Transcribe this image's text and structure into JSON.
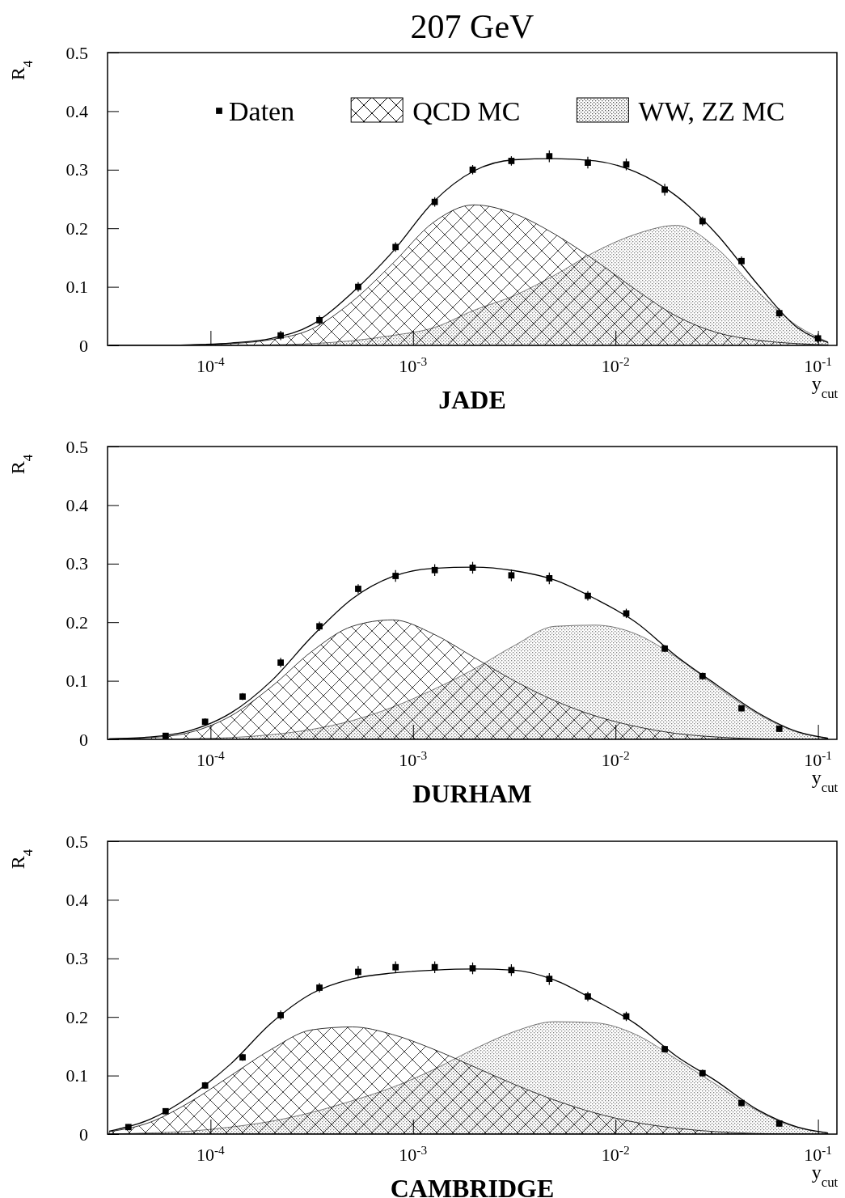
{
  "chart_data": [
    {
      "type": "scatter",
      "title": "207 GeV",
      "subtitle": "JADE",
      "xlabel": "y$_{cut}$",
      "ylabel": "R$_{4}$",
      "log": "x",
      "legend": "top",
      "xlim": [
        3.1e-05,
        0.124
      ],
      "xticks": [
        {
          "value": 0.0001,
          "label": "10$^{-4}$"
        },
        {
          "value": 0.001,
          "label": "10$^{-3}$"
        },
        {
          "value": 0.01,
          "label": "10$^{-2}$"
        },
        {
          "value": 0.1,
          "label": "10$^{-1}$"
        }
      ],
      "ylim": [
        0,
        0.5
      ],
      "yticks": [
        0,
        0.1,
        0.2,
        0.3,
        0.4,
        0.5
      ],
      "series": [
        {
          "name": "Daten",
          "type": "scatter",
          "marker": "square",
          "color": "#000000",
          "x": [
            0.000222,
            0.000345,
            0.000536,
            0.00082,
            0.00128,
            0.00197,
            0.00306,
            0.00471,
            0.0073,
            0.0113,
            0.0175,
            0.0269,
            0.0419,
            0.0644,
            0.1
          ],
          "values": [
            0.017,
            0.043,
            0.1,
            0.168,
            0.245,
            0.3,
            0.315,
            0.323,
            0.312,
            0.309,
            0.266,
            0.212,
            0.144,
            0.055,
            0.012
          ],
          "errors": [
            0.008,
            0.008,
            0.008,
            0.008,
            0.008,
            0.008,
            0.008,
            0.01,
            0.01,
            0.01,
            0.01,
            0.008,
            0.008,
            0.008,
            0.008
          ]
        },
        {
          "name": "QCD MC",
          "type": "area",
          "color": "#000000",
          "x": [
            3.16e-05,
            5.01e-05,
            7.94e-05,
            0.000126,
            0.0002,
            0.000316,
            0.000501,
            0.000794,
            0.00126,
            0.002,
            0.00316,
            0.00501,
            0.00794,
            0.0126,
            0.02,
            0.0316,
            0.0501,
            0.0794,
            0.112
          ],
          "values": [
            0,
            0,
            0.001,
            0.003,
            0.01,
            0.028,
            0.075,
            0.14,
            0.21,
            0.24,
            0.225,
            0.19,
            0.145,
            0.095,
            0.05,
            0.022,
            0.009,
            0.003,
            0.001
          ]
        },
        {
          "name": "WW, ZZ MC",
          "type": "area",
          "color": "#555555",
          "x": [
            3.16e-05,
            5.01e-05,
            7.94e-05,
            0.000126,
            0.0002,
            0.000316,
            0.000501,
            0.000794,
            0.00126,
            0.002,
            0.00316,
            0.00501,
            0.00794,
            0.0126,
            0.02,
            0.0316,
            0.0501,
            0.0794,
            0.112
          ],
          "values": [
            0,
            0,
            0,
            0,
            0.001,
            0.003,
            0.008,
            0.017,
            0.03,
            0.06,
            0.085,
            0.12,
            0.16,
            0.19,
            0.205,
            0.166,
            0.093,
            0.033,
            0.006
          ]
        },
        {
          "type": "line",
          "color": "#000000",
          "x": [
            3.16e-05,
            5.01e-05,
            7.94e-05,
            0.000126,
            0.0002,
            0.000316,
            0.000501,
            0.000794,
            0.00126,
            0.002,
            0.00316,
            0.00501,
            0.00794,
            0.0126,
            0.02,
            0.0316,
            0.0501,
            0.0794,
            0.112
          ],
          "values": [
            0,
            0,
            0.001,
            0.004,
            0.012,
            0.035,
            0.09,
            0.16,
            0.245,
            0.298,
            0.317,
            0.319,
            0.315,
            0.296,
            0.255,
            0.19,
            0.105,
            0.03,
            0.005
          ]
        }
      ]
    },
    {
      "type": "scatter",
      "subtitle": "DURHAM",
      "xlabel": "y$_{cut}$",
      "ylabel": "R$_{4}$",
      "log": "x",
      "xlim": [
        3.1e-05,
        0.124
      ],
      "xticks": [
        {
          "value": 0.0001,
          "label": "10$^{-4}$"
        },
        {
          "value": 0.001,
          "label": "10$^{-3}$"
        },
        {
          "value": 0.01,
          "label": "10$^{-2}$"
        },
        {
          "value": 0.1,
          "label": "10$^{-1}$"
        }
      ],
      "ylim": [
        0,
        0.5
      ],
      "yticks": [
        0,
        0.1,
        0.2,
        0.3,
        0.4,
        0.5
      ],
      "series": [
        {
          "type": "scatter",
          "marker": "square",
          "color": "#000000",
          "x": [
            6e-05,
            9.4e-05,
            0.000144,
            0.000222,
            0.000345,
            0.000536,
            0.00082,
            0.00128,
            0.00197,
            0.00306,
            0.00471,
            0.0073,
            0.0113,
            0.0175,
            0.0269,
            0.0419,
            0.0644
          ],
          "values": [
            0.006,
            0.03,
            0.073,
            0.131,
            0.193,
            0.257,
            0.279,
            0.289,
            0.293,
            0.28,
            0.275,
            0.245,
            0.215,
            0.155,
            0.108,
            0.053,
            0.018
          ],
          "errors": [
            0.005,
            0.006,
            0.006,
            0.008,
            0.008,
            0.008,
            0.01,
            0.01,
            0.01,
            0.01,
            0.01,
            0.008,
            0.008,
            0.006,
            0.006,
            0.005,
            0.005
          ]
        },
        {
          "type": "area",
          "color": "#000000",
          "x": [
            3.16e-05,
            5.01e-05,
            7.94e-05,
            0.000126,
            0.0002,
            0.000316,
            0.000501,
            0.000794,
            0.00126,
            0.002,
            0.00316,
            0.00501,
            0.00794,
            0.0126,
            0.02,
            0.0316,
            0.0501,
            0.0794,
            0.112
          ],
          "values": [
            0.001,
            0.003,
            0.012,
            0.04,
            0.09,
            0.15,
            0.193,
            0.204,
            0.18,
            0.14,
            0.1,
            0.066,
            0.04,
            0.022,
            0.01,
            0.004,
            0.001,
            0,
            0
          ]
        },
        {
          "type": "area",
          "color": "#555555",
          "x": [
            3.16e-05,
            5.01e-05,
            7.94e-05,
            0.000126,
            0.0002,
            0.000316,
            0.000501,
            0.000794,
            0.00126,
            0.002,
            0.00316,
            0.00501,
            0.00794,
            0.0126,
            0.02,
            0.0316,
            0.0501,
            0.0794,
            0.112
          ],
          "values": [
            0,
            0,
            0.001,
            0.003,
            0.008,
            0.017,
            0.032,
            0.055,
            0.085,
            0.12,
            0.16,
            0.193,
            0.195,
            0.18,
            0.14,
            0.09,
            0.044,
            0.012,
            0.002
          ]
        },
        {
          "type": "line",
          "color": "#000000",
          "x": [
            3.16e-05,
            5.01e-05,
            7.94e-05,
            0.000126,
            0.0002,
            0.000316,
            0.000501,
            0.000794,
            0.00126,
            0.002,
            0.00316,
            0.00501,
            0.00794,
            0.0126,
            0.02,
            0.0316,
            0.0501,
            0.0794,
            0.112
          ],
          "values": [
            0.001,
            0.004,
            0.015,
            0.045,
            0.1,
            0.175,
            0.24,
            0.278,
            0.292,
            0.294,
            0.288,
            0.272,
            0.24,
            0.2,
            0.142,
            0.093,
            0.046,
            0.013,
            0.002
          ]
        }
      ]
    },
    {
      "type": "scatter",
      "subtitle": "CAMBRIDGE",
      "xlabel": "y$_{cut}$",
      "ylabel": "R$_{4}$",
      "log": "x",
      "xlim": [
        3.1e-05,
        0.124
      ],
      "xticks": [
        {
          "value": 0.0001,
          "label": "10$^{-4}$"
        },
        {
          "value": 0.001,
          "label": "10$^{-3}$"
        },
        {
          "value": 0.01,
          "label": "10$^{-2}$"
        },
        {
          "value": 0.1,
          "label": "10$^{-1}$"
        }
      ],
      "ylim": [
        0,
        0.5
      ],
      "yticks": [
        0,
        0.1,
        0.2,
        0.3,
        0.4,
        0.5
      ],
      "series": [
        {
          "type": "scatter",
          "marker": "square",
          "color": "#000000",
          "x": [
            3.93e-05,
            6e-05,
            9.4e-05,
            0.000144,
            0.000222,
            0.000345,
            0.000536,
            0.00082,
            0.00128,
            0.00197,
            0.00306,
            0.00471,
            0.0073,
            0.0113,
            0.0175,
            0.0269,
            0.0419,
            0.0644
          ],
          "values": [
            0.012,
            0.039,
            0.083,
            0.131,
            0.203,
            0.25,
            0.277,
            0.285,
            0.285,
            0.283,
            0.28,
            0.265,
            0.235,
            0.201,
            0.145,
            0.104,
            0.053,
            0.018
          ],
          "errors": [
            0.005,
            0.005,
            0.006,
            0.006,
            0.008,
            0.008,
            0.01,
            0.01,
            0.01,
            0.01,
            0.01,
            0.01,
            0.008,
            0.008,
            0.006,
            0.006,
            0.005,
            0.005
          ]
        },
        {
          "type": "area",
          "color": "#000000",
          "x": [
            3.16e-05,
            5.01e-05,
            7.94e-05,
            0.000126,
            0.0002,
            0.000316,
            0.000501,
            0.000794,
            0.00126,
            0.002,
            0.00316,
            0.00501,
            0.00794,
            0.0126,
            0.02,
            0.0316,
            0.0501,
            0.0794,
            0.112
          ],
          "values": [
            0.004,
            0.02,
            0.055,
            0.1,
            0.145,
            0.178,
            0.183,
            0.17,
            0.145,
            0.115,
            0.085,
            0.058,
            0.036,
            0.02,
            0.01,
            0.004,
            0.001,
            0,
            0
          ]
        },
        {
          "type": "area",
          "color": "#555555",
          "x": [
            3.16e-05,
            5.01e-05,
            7.94e-05,
            0.000126,
            0.0002,
            0.000316,
            0.000501,
            0.000794,
            0.00126,
            0.002,
            0.00316,
            0.00501,
            0.00794,
            0.0126,
            0.02,
            0.0316,
            0.0501,
            0.0794,
            0.112
          ],
          "values": [
            0,
            0.002,
            0.005,
            0.012,
            0.022,
            0.037,
            0.057,
            0.08,
            0.11,
            0.145,
            0.175,
            0.192,
            0.19,
            0.17,
            0.128,
            0.084,
            0.04,
            0.011,
            0.002
          ]
        },
        {
          "type": "line",
          "color": "#000000",
          "x": [
            3.16e-05,
            5.01e-05,
            7.94e-05,
            0.000126,
            0.0002,
            0.000316,
            0.000501,
            0.000794,
            0.00126,
            0.002,
            0.00316,
            0.00501,
            0.00794,
            0.0126,
            0.02,
            0.0316,
            0.0501,
            0.0794,
            0.112
          ],
          "values": [
            0.005,
            0.025,
            0.065,
            0.12,
            0.19,
            0.24,
            0.265,
            0.275,
            0.28,
            0.282,
            0.28,
            0.263,
            0.228,
            0.188,
            0.133,
            0.09,
            0.042,
            0.012,
            0.002
          ]
        }
      ]
    }
  ]
}
